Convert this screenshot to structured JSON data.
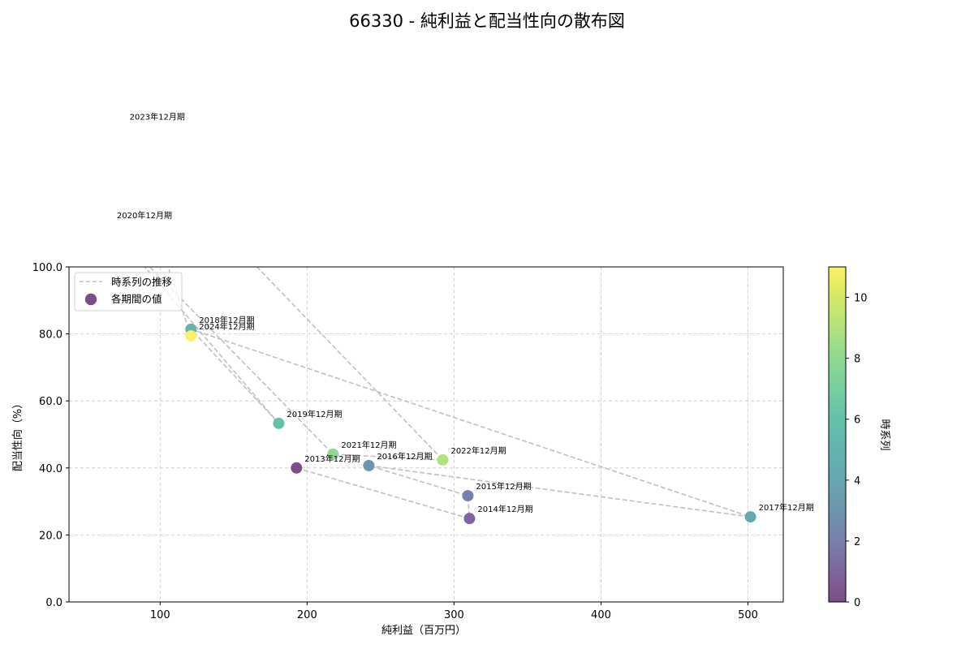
{
  "title": "66330 - 純利益と配当性向の散布図",
  "chart_data": {
    "type": "scatter",
    "title": "66330 - 純利益と配当性向の散布図",
    "xlabel": "純利益（百万円）",
    "ylabel": "配当性向（%）",
    "xlim": [
      38,
      524
    ],
    "ylim": [
      0,
      100
    ],
    "x_ticks": [
      100,
      200,
      300,
      400,
      500
    ],
    "x_tick_labels": [
      "100",
      "200",
      "300",
      "400",
      "500"
    ],
    "y_ticks": [
      0,
      20,
      40,
      60,
      80,
      100
    ],
    "y_tick_labels": [
      "0.0",
      "20.0",
      "40.0",
      "60.0",
      "80.0",
      "100.0"
    ],
    "grid": true,
    "legend_position": "upper left",
    "legend": [
      {
        "label": "時系列の推移",
        "kind": "dashed-line",
        "color": "#bfbfbf"
      },
      {
        "label": "各期間の値",
        "kind": "marker",
        "color": "#7c4d87"
      }
    ],
    "colorbar": {
      "label": "時系列",
      "range": [
        0,
        11
      ],
      "ticks": [
        0,
        2,
        4,
        6,
        8,
        10
      ],
      "tick_labels": [
        "0",
        "2",
        "4",
        "6",
        "8",
        "10"
      ],
      "colormap": "viridis"
    },
    "points": [
      {
        "label": "2013年12月期",
        "x": 192.8,
        "y": 40.0,
        "t": 0,
        "color": "#7c4d87"
      },
      {
        "label": "2014年12月期",
        "x": 310.5,
        "y": 24.9,
        "t": 1,
        "color": "#7f659d"
      },
      {
        "label": "2015年12月期",
        "x": 309.4,
        "y": 31.7,
        "t": 2,
        "color": "#787fac"
      },
      {
        "label": "2016年12月期",
        "x": 242.0,
        "y": 40.7,
        "t": 3,
        "color": "#6e95af"
      },
      {
        "label": "2017年12月期",
        "x": 501.7,
        "y": 25.4,
        "t": 4,
        "color": "#67a7b0"
      },
      {
        "label": "2018年12月期",
        "x": 121.0,
        "y": 81.4,
        "t": 5,
        "color": "#62b4ae"
      },
      {
        "label": "2019年12月期",
        "x": 180.7,
        "y": 53.3,
        "t": 6,
        "color": "#64c1aa"
      },
      {
        "label": "2020年12月期",
        "x": 65.0,
        "y": 112.6,
        "t": 7,
        "color": "#76cf9e"
      },
      {
        "label": "2021年12月期",
        "x": 217.7,
        "y": 44.1,
        "t": 8,
        "color": "#8ed991"
      },
      {
        "label": "2022年12月期",
        "x": 292.3,
        "y": 42.4,
        "t": 9,
        "color": "#b1e37c"
      },
      {
        "label": "2023年12月期",
        "x": 73.7,
        "y": 142.0,
        "t": 10,
        "color": "#d4e965"
      },
      {
        "label": "2024年12月期",
        "x": 121.0,
        "y": 79.4,
        "t": 11,
        "color": "#fdef66"
      }
    ]
  },
  "colors": {
    "line": "#bfbfbf",
    "grid": "#c8c8c8",
    "axis": "#000000"
  }
}
